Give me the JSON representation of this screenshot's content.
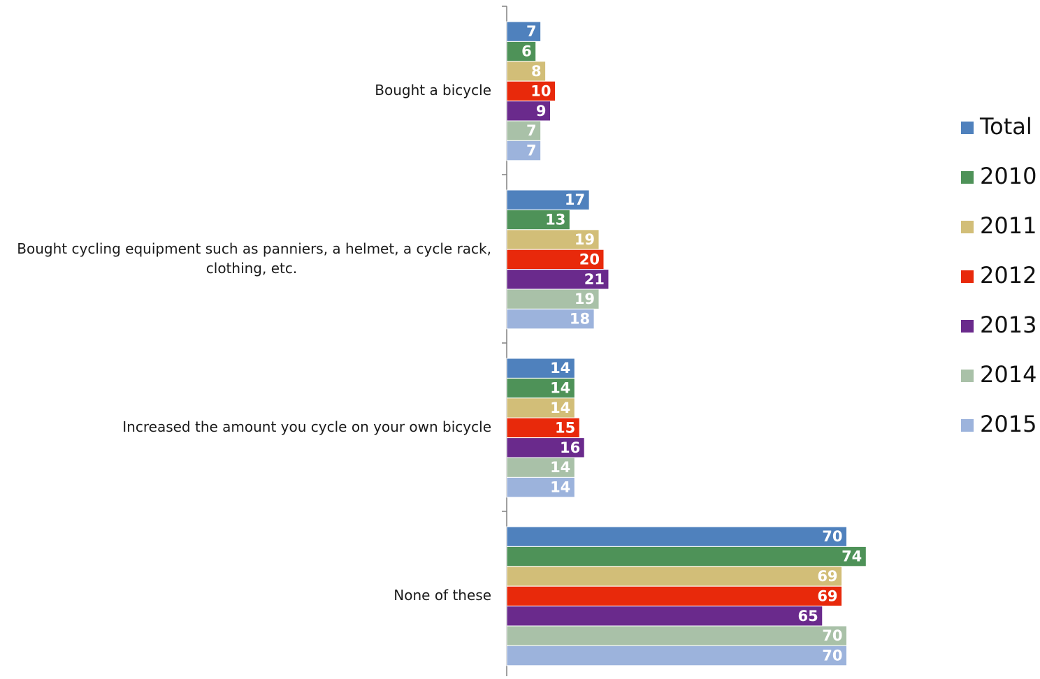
{
  "chart_data": {
    "type": "bar",
    "orientation": "horizontal",
    "categories": [
      "Bought a bicycle",
      "Bought cycling equipment such as panniers, a helmet, a cycle rack, clothing, etc.",
      "Increased the amount you cycle on your own bicycle",
      "None of these"
    ],
    "series": [
      {
        "name": "Total",
        "color": "#4f81bd",
        "values": [
          7,
          17,
          14,
          70
        ]
      },
      {
        "name": "2010",
        "color": "#4e9258",
        "values": [
          6,
          13,
          14,
          74
        ]
      },
      {
        "name": "2011",
        "color": "#d2be78",
        "values": [
          8,
          19,
          14,
          69
        ]
      },
      {
        "name": "2012",
        "color": "#e8290b",
        "values": [
          10,
          20,
          15,
          69
        ]
      },
      {
        "name": "2013",
        "color": "#6a2a8c",
        "values": [
          9,
          21,
          16,
          65
        ]
      },
      {
        "name": "2014",
        "color": "#a9c1a8",
        "values": [
          7,
          19,
          14,
          70
        ]
      },
      {
        "name": "2015",
        "color": "#9cb3dc",
        "values": [
          7,
          18,
          14,
          70
        ]
      }
    ],
    "title": "",
    "xlabel": "",
    "ylabel": "",
    "xlim": [
      0,
      110
    ],
    "grid": false,
    "legend_position": "right"
  }
}
